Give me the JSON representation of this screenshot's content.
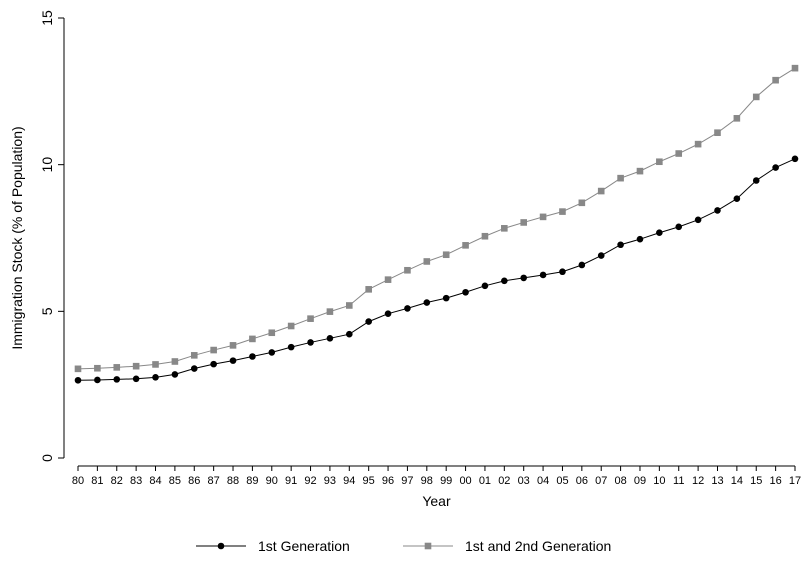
{
  "chart_data": {
    "type": "line",
    "title": "",
    "xlabel": "Year",
    "ylabel": "Immigration Stock (% of Population)",
    "ylim": [
      0,
      15
    ],
    "yticks": [
      0,
      5,
      10,
      15
    ],
    "grid": false,
    "legend_position": "bottom",
    "categories": [
      "80",
      "81",
      "82",
      "83",
      "84",
      "85",
      "86",
      "87",
      "88",
      "89",
      "90",
      "91",
      "92",
      "93",
      "94",
      "95",
      "96",
      "97",
      "98",
      "99",
      "00",
      "01",
      "02",
      "03",
      "04",
      "05",
      "06",
      "07",
      "08",
      "09",
      "10",
      "11",
      "12",
      "13",
      "14",
      "15",
      "16",
      "17"
    ],
    "series": [
      {
        "name": "1st Generation",
        "color": "#000000",
        "marker": "circle",
        "values": [
          2.65,
          2.66,
          2.68,
          2.7,
          2.75,
          2.85,
          3.05,
          3.2,
          3.32,
          3.46,
          3.6,
          3.78,
          3.94,
          4.08,
          4.22,
          4.65,
          4.92,
          5.1,
          5.3,
          5.45,
          5.65,
          5.87,
          6.04,
          6.14,
          6.24,
          6.35,
          6.58,
          6.9,
          7.27,
          7.46,
          7.68,
          7.88,
          8.12,
          8.44,
          8.84,
          9.46,
          9.9,
          10.2
        ]
      },
      {
        "name": "1st and 2nd Generation",
        "color": "#888888",
        "marker": "square",
        "values": [
          3.04,
          3.06,
          3.09,
          3.13,
          3.19,
          3.29,
          3.5,
          3.68,
          3.84,
          4.06,
          4.27,
          4.5,
          4.75,
          4.99,
          5.2,
          5.75,
          6.08,
          6.4,
          6.7,
          6.93,
          7.25,
          7.56,
          7.83,
          8.03,
          8.22,
          8.4,
          8.7,
          9.1,
          9.54,
          9.78,
          10.1,
          10.38,
          10.7,
          11.09,
          11.58,
          12.31,
          12.88,
          13.29
        ]
      }
    ]
  }
}
